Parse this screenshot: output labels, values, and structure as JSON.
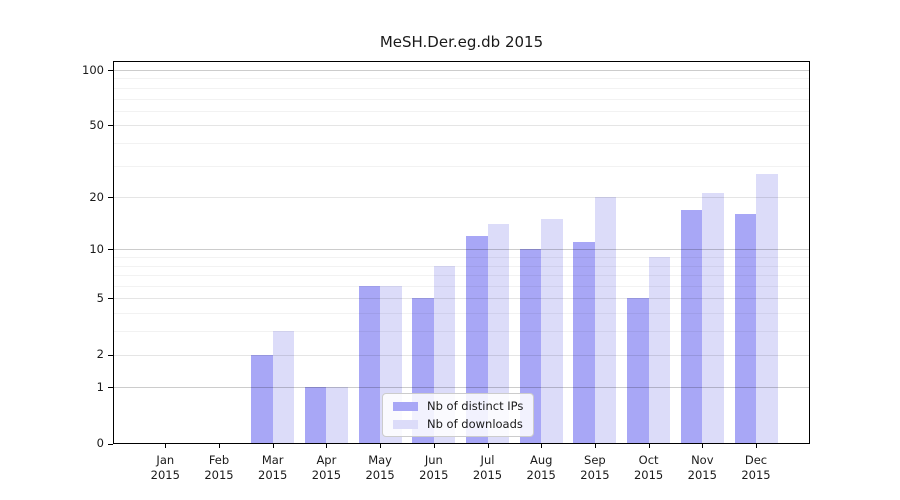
{
  "title": "MeSH.Der.eg.db 2015",
  "chart_data": {
    "type": "bar",
    "title": "MeSH.Der.eg.db 2015",
    "categories": [
      {
        "month": "Jan",
        "year": "2015"
      },
      {
        "month": "Feb",
        "year": "2015"
      },
      {
        "month": "Mar",
        "year": "2015"
      },
      {
        "month": "Apr",
        "year": "2015"
      },
      {
        "month": "May",
        "year": "2015"
      },
      {
        "month": "Jun",
        "year": "2015"
      },
      {
        "month": "Jul",
        "year": "2015"
      },
      {
        "month": "Aug",
        "year": "2015"
      },
      {
        "month": "Sep",
        "year": "2015"
      },
      {
        "month": "Oct",
        "year": "2015"
      },
      {
        "month": "Nov",
        "year": "2015"
      },
      {
        "month": "Dec",
        "year": "2015"
      }
    ],
    "series": [
      {
        "name": "Nb of distinct IPs",
        "color": "#a8a7f6",
        "values": [
          0,
          0,
          2,
          1,
          6,
          5,
          12,
          10,
          11,
          5,
          17,
          16
        ]
      },
      {
        "name": "Nb of downloads",
        "color": "#dcdcf9",
        "values": [
          0,
          0,
          3,
          1,
          6,
          8,
          14,
          15,
          20,
          9,
          21,
          27
        ]
      }
    ],
    "yscale": "log1p",
    "yticks": [
      0,
      1,
      2,
      5,
      10,
      20,
      50,
      100
    ],
    "ylim": [
      0,
      112
    ],
    "xlabel": "",
    "ylabel": "",
    "grid": true,
    "legend_position": "lower center"
  },
  "colors": {
    "grid_major": "rgba(0,0,0,0.20)",
    "grid_mid": "rgba(0,0,0,0.10)",
    "grid_minor": "rgba(0,0,0,0.05)",
    "axis": "#000000"
  }
}
